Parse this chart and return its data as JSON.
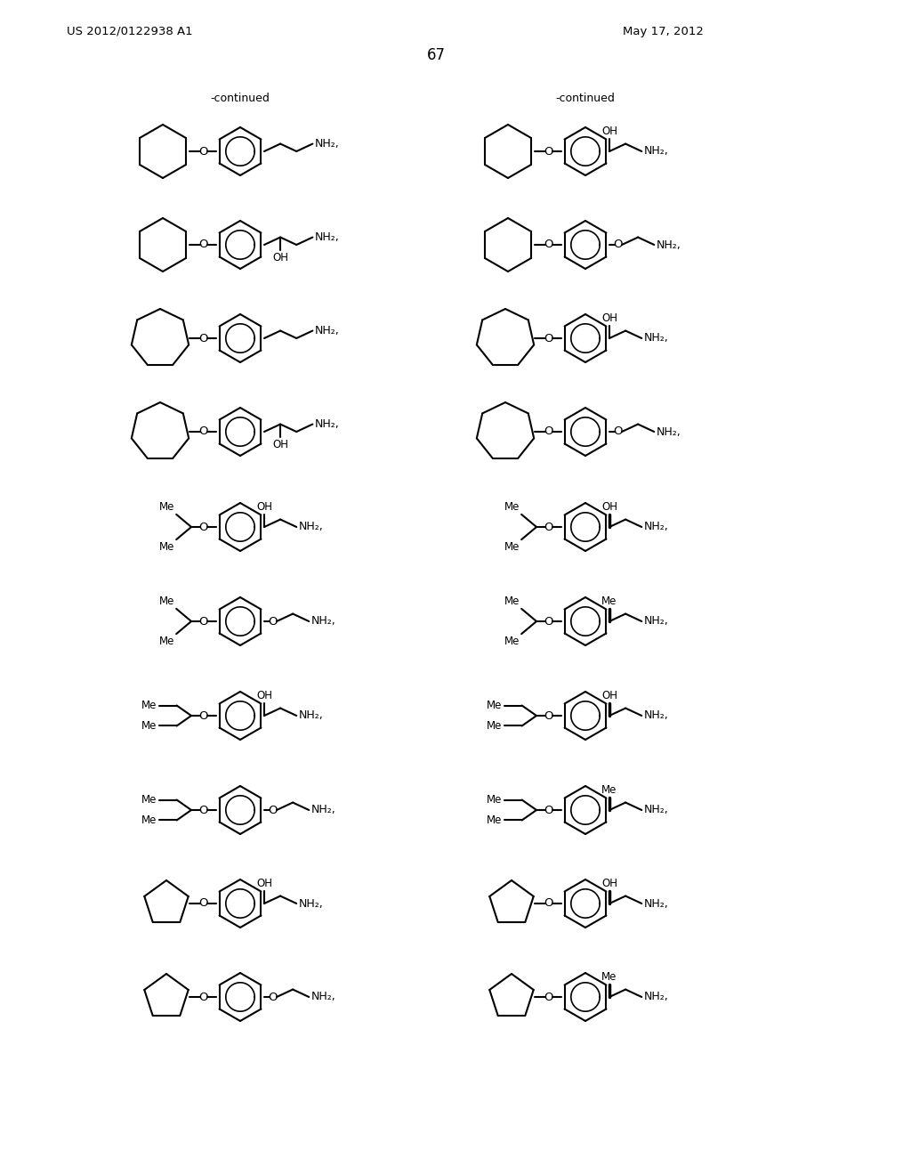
{
  "patent_number": "US 2012/0122938 A1",
  "date": "May 17, 2012",
  "page_number": "67",
  "continued_label": "-continued",
  "figsize": [
    10.24,
    13.2
  ],
  "dpi": 100,
  "rows": [
    1150,
    1045,
    940,
    835,
    728,
    622,
    516,
    410,
    305,
    200
  ],
  "lc": 270,
  "rc": 658
}
